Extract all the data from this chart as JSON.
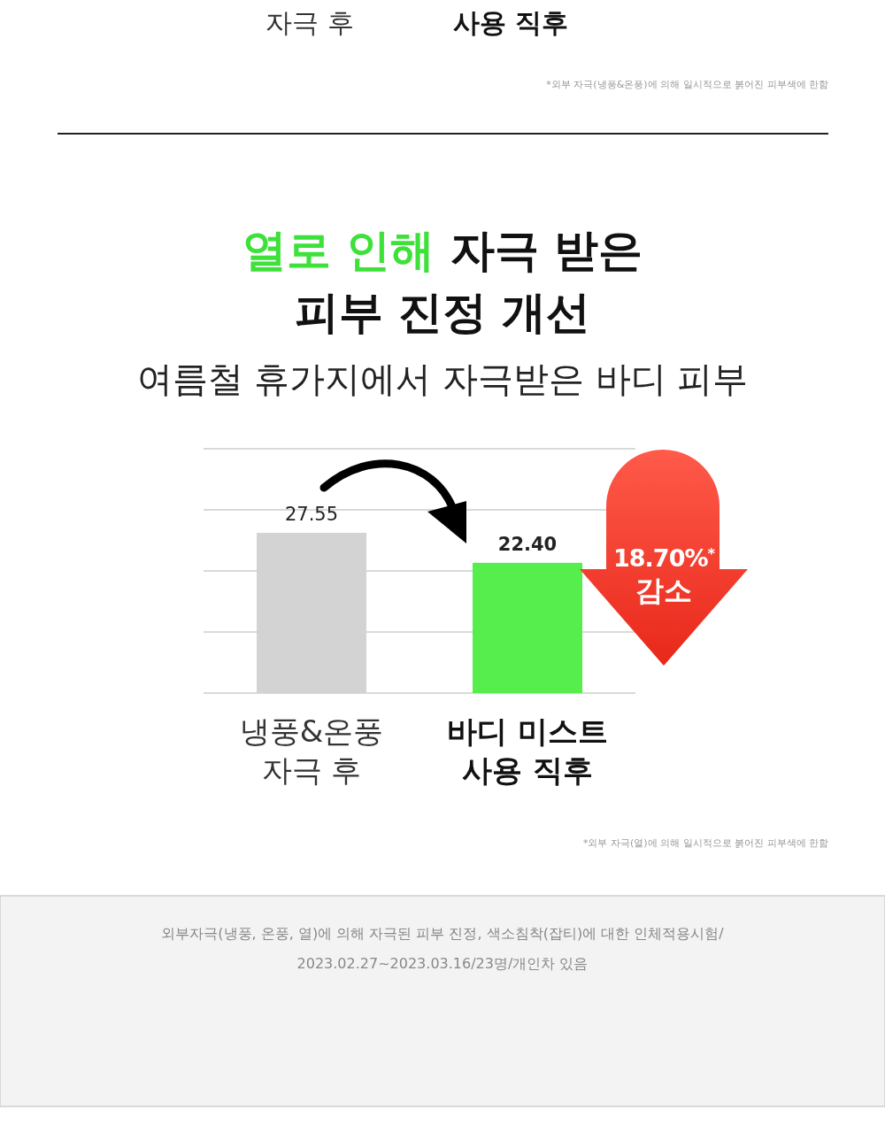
{
  "chart_data": [
    {
      "type": "other",
      "annotations": [
        "자극 후",
        "사용 직후",
        "*외부 자극(냉풍&온풍)에 의해 일시적으로 붉어진 피부색에 한함"
      ]
    },
    {
      "type": "bar",
      "title": "열로 인해 자극 받은 피부 진정 개선",
      "subtitle": "여름철 휴가지에서 자극받은 바디 피부",
      "categories": [
        "냉풍&온풍\n자극 후",
        "바디 미스트\n사용 직후"
      ],
      "values": [
        27.55,
        22.4
      ],
      "value_labels": [
        "27.55",
        "22.40"
      ],
      "colors": [
        "#d3d3d3",
        "#55ee4c"
      ],
      "ylim": [
        0,
        42
      ],
      "yticks": [
        {
          "value": 0,
          "label": null
        },
        {
          "value": 10.5,
          "label": null
        },
        {
          "value": 21,
          "label": null
        },
        {
          "value": 31.5,
          "label": null
        },
        {
          "value": 42,
          "label": null
        }
      ],
      "grid": "y",
      "tick_labels": "x",
      "annotations": [
        "18.70%$^{*}$ 감소",
        "*외부 자극(열)에 의해 일시적으로 붉어진 피부색에 한함",
        "외부자극(냉풍, 온풍, 열)에 의해 자극된 피부 진정, 색소침착(잡티)에 대한 인체적용시험/2023.02.27~2023.03.16/23명/개인차 있음"
      ]
    }
  ]
}
